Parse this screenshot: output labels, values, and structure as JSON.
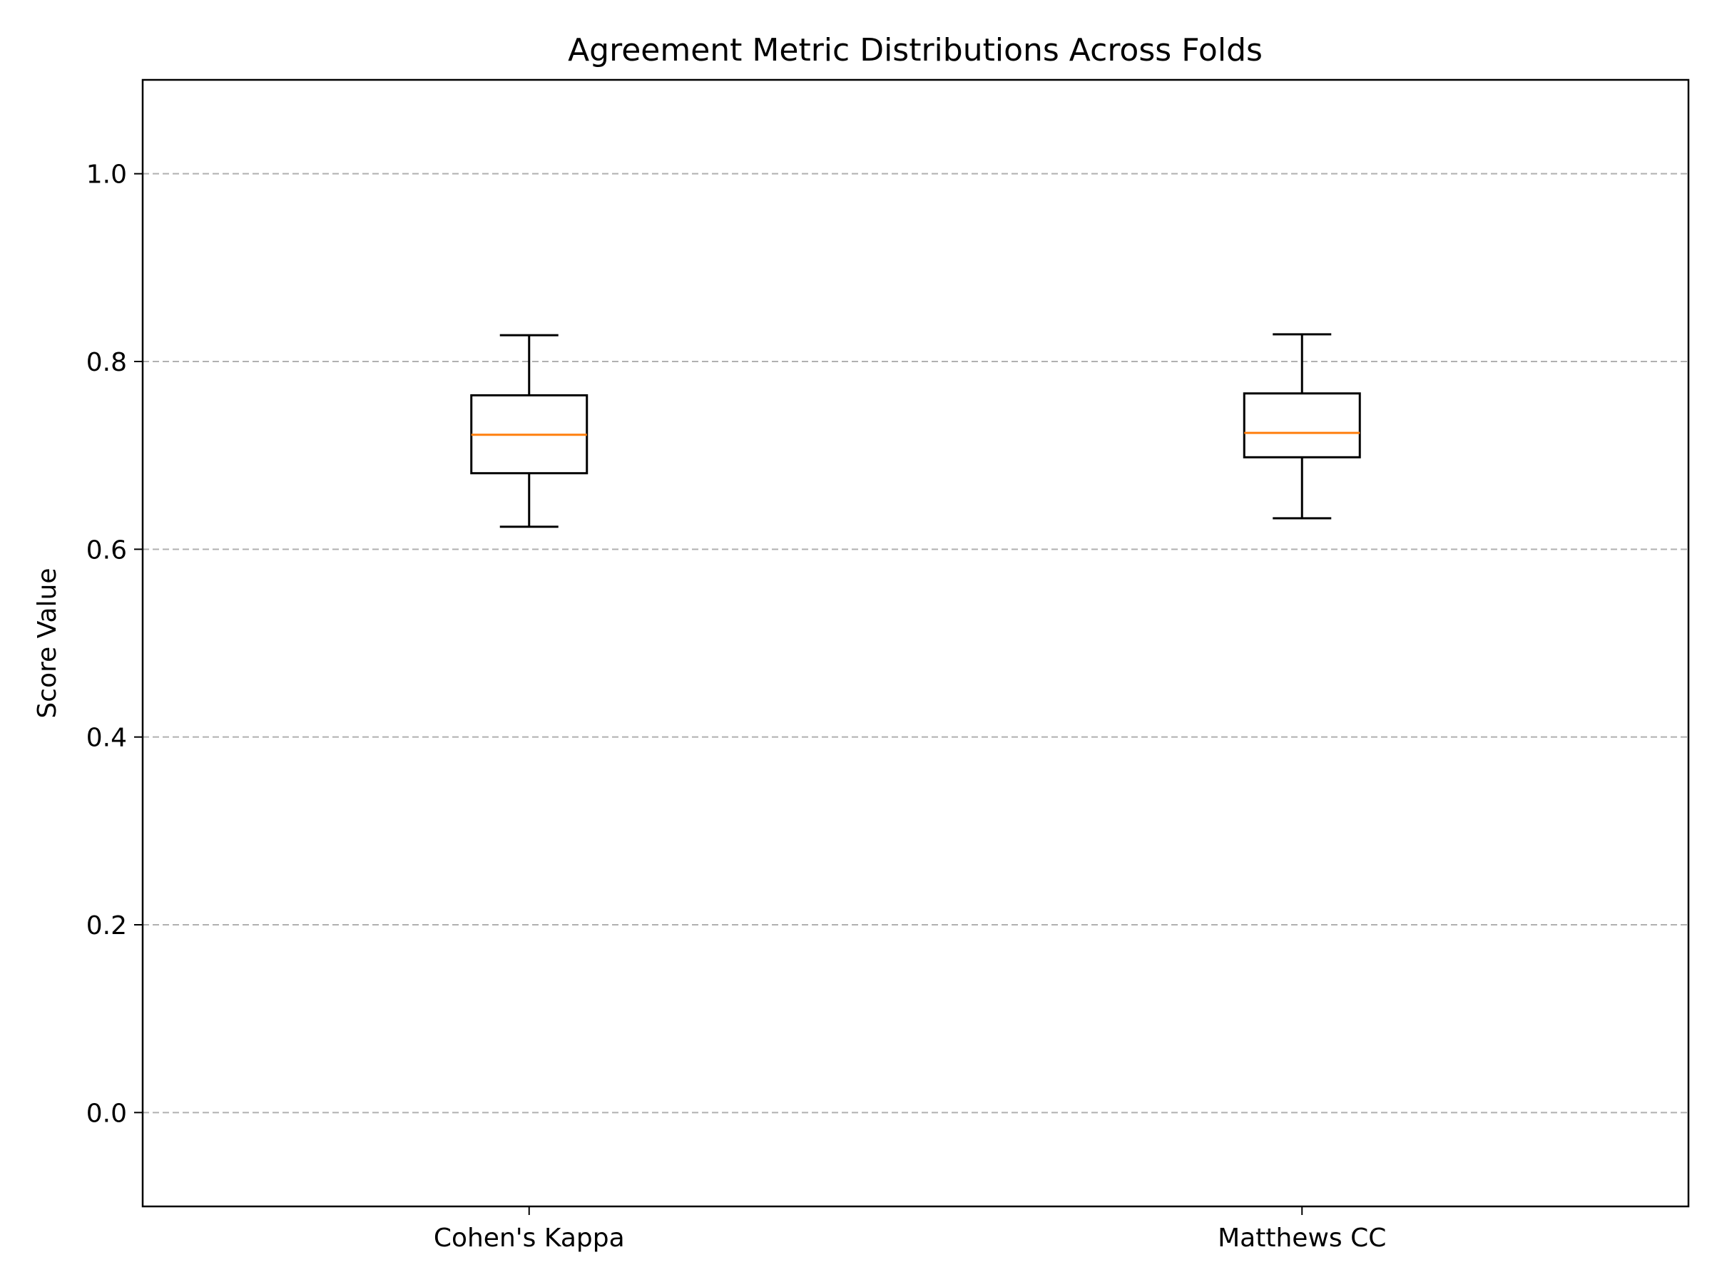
{
  "chart_data": {
    "type": "box",
    "title": "Agreement Metric Distributions Across Folds",
    "xlabel": "",
    "ylabel": "Score Value",
    "ylim": [
      -0.1,
      1.1
    ],
    "yticks": [
      0.0,
      0.2,
      0.4,
      0.6,
      0.8,
      1.0
    ],
    "ytick_labels": [
      "0.0",
      "0.2",
      "0.4",
      "0.6",
      "0.8",
      "1.0"
    ],
    "grid": "y-dashed",
    "categories": [
      "Cohen's Kappa",
      "Matthews CC"
    ],
    "boxes": [
      {
        "label": "Cohen's Kappa",
        "whisker_low": 0.624,
        "q1": 0.681,
        "median": 0.722,
        "q3": 0.764,
        "whisker_high": 0.828
      },
      {
        "label": "Matthews CC",
        "whisker_low": 0.633,
        "q1": 0.698,
        "median": 0.724,
        "q3": 0.766,
        "whisker_high": 0.829
      }
    ],
    "colors": {
      "box": "#000000",
      "median": "#ff7f0e",
      "grid": "#b0b0b0"
    }
  }
}
